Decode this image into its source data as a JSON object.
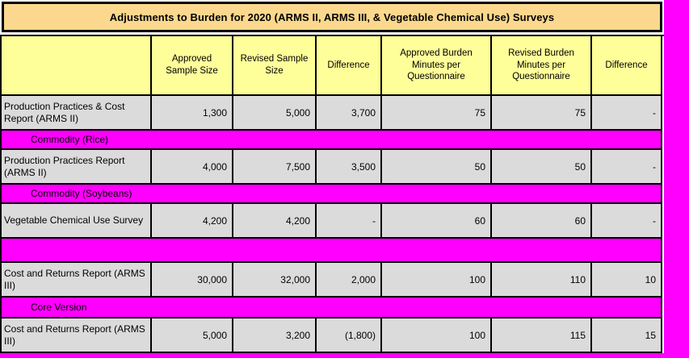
{
  "window": {
    "background_color": "#FF00FF",
    "sheet_color": "#FFFFFF"
  },
  "title_bar": {
    "text": "Adjustments to Burden for 2020 (ARMS II, ARMS III, & Vegetable Chemical Use) Surveys",
    "background_color": "#FBD88D"
  },
  "table": {
    "header_background": "#FFFF99",
    "data_row_background": "#DBDBDB",
    "band_background": "#FF00FF",
    "headers": [
      "Approved Sample Size",
      "Revised Sample Size",
      "Difference",
      "Approved Burden Minutes per Questionnaire",
      "Revised Burden Minutes per Questionnaire",
      "Difference"
    ],
    "rows": [
      {
        "type": "data",
        "label": "Production Practices & Cost Report (ARMS II)",
        "values": [
          "1,300",
          "5,000",
          "3,700",
          "75",
          "75",
          "-"
        ]
      },
      {
        "type": "band",
        "label": "Commodity (Rice)"
      },
      {
        "type": "data",
        "label": "Production Practices Report (ARMS II)",
        "values": [
          "4,000",
          "7,500",
          "3,500",
          "50",
          "50",
          "-"
        ]
      },
      {
        "type": "band",
        "label": "Commodity (Soybeans)"
      },
      {
        "type": "data",
        "label": "Vegetable Chemical Use Survey",
        "values": [
          "4,200",
          "4,200",
          "-",
          "60",
          "60",
          "-"
        ]
      },
      {
        "type": "band",
        "label": ""
      },
      {
        "type": "data",
        "label": "Cost and Returns Report (ARMS III)",
        "values": [
          "30,000",
          "32,000",
          "2,000",
          "100",
          "110",
          "10"
        ]
      },
      {
        "type": "band",
        "label": "Core Version"
      },
      {
        "type": "data",
        "label": "Cost and Returns Report (ARMS III)",
        "values": [
          "5,000",
          "3,200",
          "(1,800)",
          "100",
          "115",
          "15"
        ]
      }
    ]
  }
}
